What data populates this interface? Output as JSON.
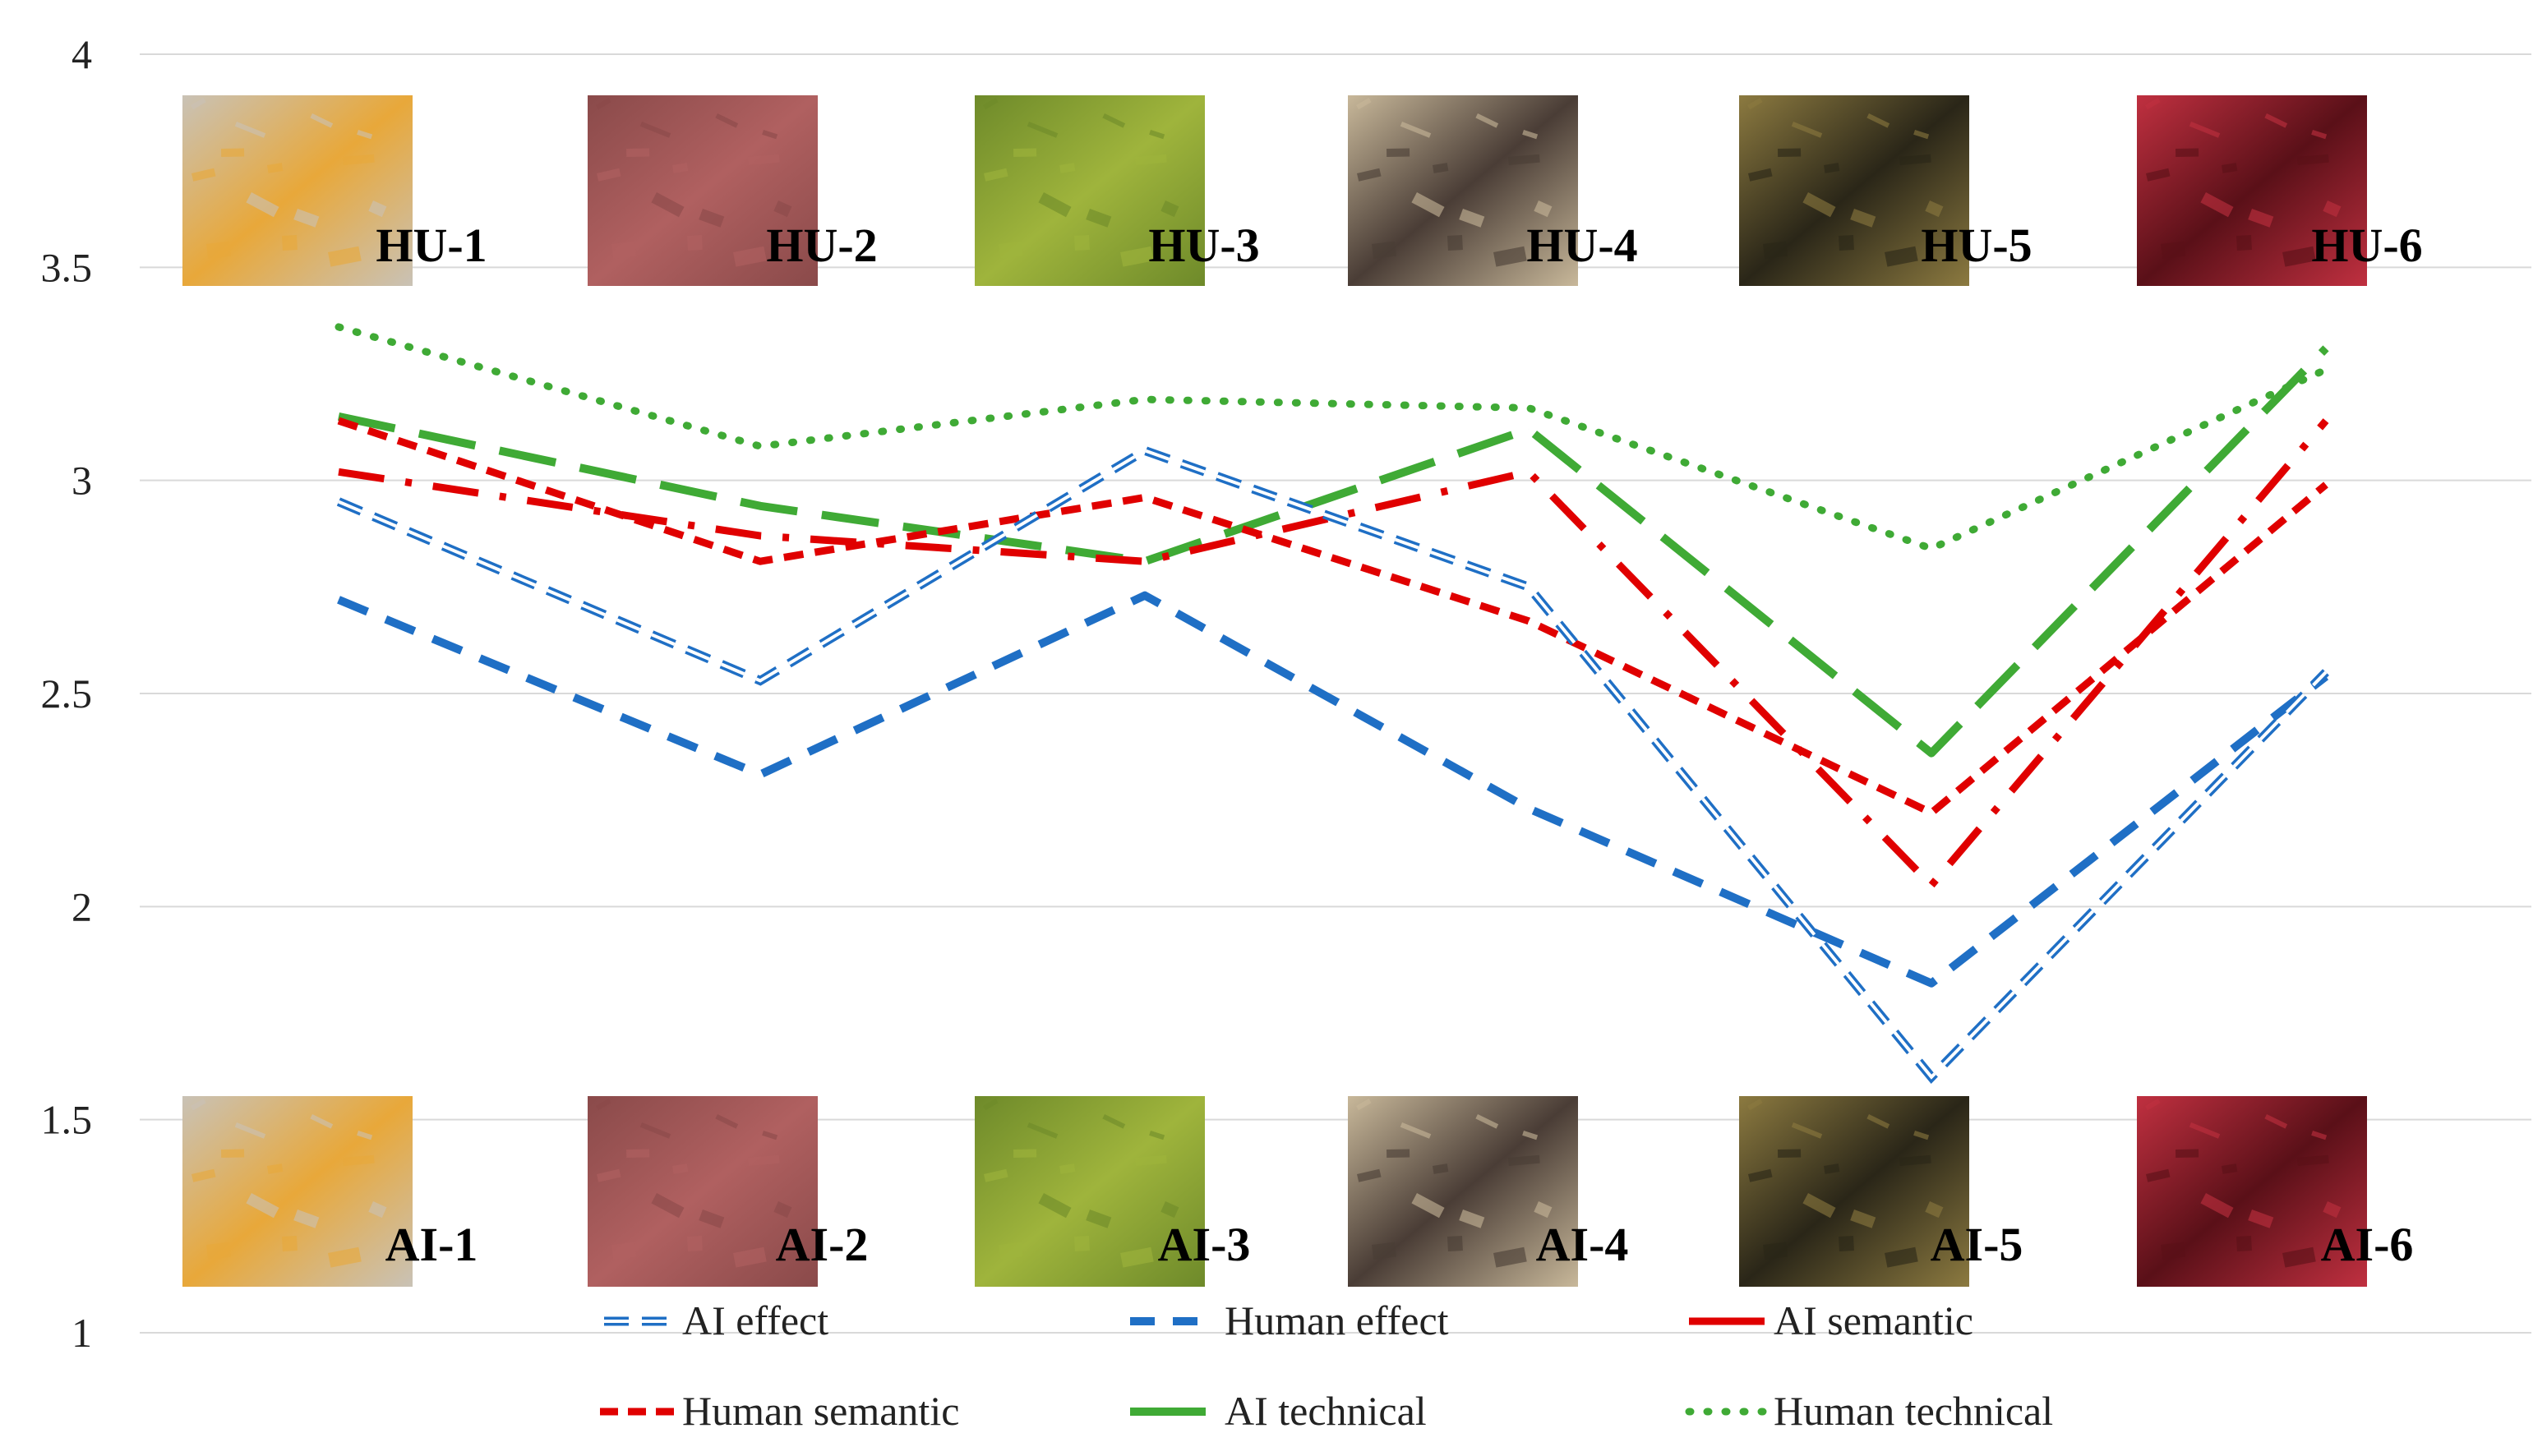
{
  "chart_data": {
    "type": "line",
    "title": "",
    "xlabel": "",
    "ylabel": "",
    "ylim": [
      1,
      4
    ],
    "yticks": [
      "1",
      "1.5",
      "2",
      "2.5",
      "3",
      "3.5",
      "4"
    ],
    "yticks_values": [
      1,
      1.5,
      2,
      2.5,
      3,
      3.5,
      4
    ],
    "grid": true,
    "legend_position": "bottom",
    "categories": [
      "1",
      "2",
      "3",
      "4",
      "5",
      "6"
    ],
    "series": [
      {
        "name": "AI effect",
        "values": [
          2.95,
          2.53,
          3.07,
          2.75,
          1.6,
          2.55
        ],
        "color": "#1F6FC5",
        "style": "double"
      },
      {
        "name": "Human effect",
        "values": [
          2.72,
          2.31,
          2.73,
          2.23,
          1.82,
          2.54
        ],
        "color": "#1F6FC5",
        "style": "dashed"
      },
      {
        "name": "AI semantic",
        "values": [
          3.02,
          2.87,
          2.81,
          3.02,
          2.05,
          3.14
        ],
        "color": "#E00000",
        "style": "dashdot"
      },
      {
        "name": "Human semantic",
        "values": [
          3.14,
          2.81,
          2.96,
          2.67,
          2.22,
          2.99
        ],
        "color": "#E00000",
        "style": "shortdash"
      },
      {
        "name": "AI technical",
        "values": [
          3.15,
          2.94,
          2.81,
          3.12,
          2.36,
          3.31
        ],
        "color": "#3FAA35",
        "style": "longdash"
      },
      {
        "name": "Human technical",
        "values": [
          3.36,
          3.08,
          3.19,
          3.17,
          2.84,
          3.26
        ],
        "color": "#3FAA35",
        "style": "dotted"
      }
    ],
    "annotations": {
      "top_row": [
        "HU-1",
        "HU-2",
        "HU-3",
        "HU-4",
        "HU-5",
        "HU-6"
      ],
      "bottom_row": [
        "AI-1",
        "AI-2",
        "AI-3",
        "AI-4",
        "AI-5",
        "AI-6"
      ]
    },
    "thumbnail_colors": [
      [
        "#e8a83a",
        "#c9c2b6"
      ],
      [
        "#b06060",
        "#8a4a4a"
      ],
      [
        "#9fb43c",
        "#6e8a2a"
      ],
      [
        "#4a3d36",
        "#c8b89a"
      ],
      [
        "#2a2618",
        "#8c7a40"
      ],
      [
        "#5a1018",
        "#c03040"
      ]
    ]
  }
}
